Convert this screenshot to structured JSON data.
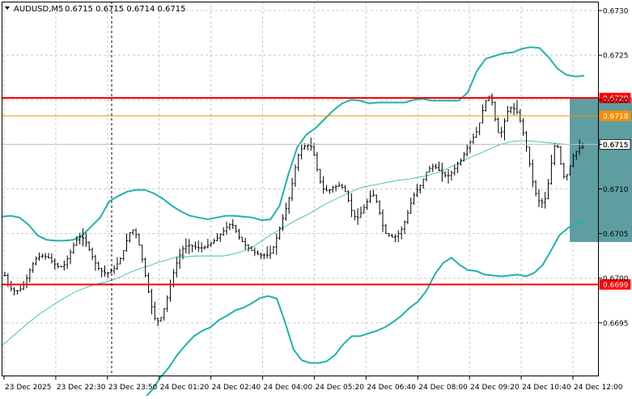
{
  "header": {
    "menu_icon": "triangle-down-icon",
    "symbol": "AUDUSD,M5",
    "ohlc": "0.6715 0.6715 0.6714 0.6715"
  },
  "colors": {
    "background": "#ffffff",
    "grid": "#c8c8c8",
    "bar": "#000000",
    "bollinger": "#20b2aa",
    "moving_average": "#20b2aa",
    "resistance_line": "#ff0000",
    "level_line": "#ff8c00",
    "bid_line": "#c0c0c0",
    "projection_box": "#5f9ea0",
    "price_label_red": "#ff0000",
    "price_label_orange": "#ff8c00",
    "price_label_bid": "#ffffff"
  },
  "chart_data": {
    "type": "candlestick-bars",
    "symbol": "AUDUSD",
    "timeframe": "M5",
    "price_range": [
      0.6689,
      0.6731
    ],
    "price_ticks": [
      "0.6730",
      "0.6725",
      "0.6720",
      "0.6715",
      "0.6710",
      "0.6705",
      "0.6700",
      "0.6695"
    ],
    "time_ticks": [
      "23 Dec 2025",
      "23 Dec 22:30",
      "23 Dec 23:50",
      "24 Dec 01:20",
      "24 Dec 02:40",
      "24 Dec 04:00",
      "24 Dec 05:20",
      "24 Dec 06:40",
      "24 Dec 08:00",
      "24 Dec 09:20",
      "24 Dec 10:40",
      "24 Dec 12:00"
    ],
    "price_labels": [
      {
        "text": "0.6720",
        "value": 0.67202,
        "style": "red"
      },
      {
        "text": "0.6718",
        "value": 0.67182,
        "style": "orange"
      },
      {
        "text": "0.6715",
        "value": 0.6715,
        "style": "bid"
      },
      {
        "text": "0.6699",
        "value": 0.66993,
        "style": "red"
      }
    ],
    "horizontal_lines": [
      {
        "value": 0.67202,
        "style": "red"
      },
      {
        "value": 0.67182,
        "style": "orange"
      },
      {
        "value": 0.6715,
        "style": "bid"
      },
      {
        "value": 0.66993,
        "style": "red"
      }
    ],
    "projection_box": {
      "time_start_index": 181,
      "time_end_index": 210,
      "price_top": 0.67202,
      "price_bottom": 0.67041
    },
    "grid": true,
    "close_series": [
      0.67003,
      0.66993,
      0.66988,
      0.66986,
      0.66986,
      0.66988,
      0.66993,
      0.67,
      0.67009,
      0.67016,
      0.67022,
      0.67024,
      0.67025,
      0.67024,
      0.67023,
      0.67019,
      0.67016,
      0.67013,
      0.67013,
      0.67015,
      0.67022,
      0.67029,
      0.67037,
      0.67043,
      0.67046,
      0.67045,
      0.6704,
      0.67032,
      0.67024,
      0.67017,
      0.67011,
      0.67008,
      0.67006,
      0.67006,
      0.67008,
      0.67011,
      0.67016,
      0.67022,
      0.67031,
      0.67042,
      0.67051,
      0.67054,
      0.67049,
      0.67037,
      0.67021,
      0.67003,
      0.66985,
      0.66968,
      0.66955,
      0.66952,
      0.66956,
      0.66966,
      0.66978,
      0.66993,
      0.67006,
      0.67017,
      0.67026,
      0.67033,
      0.67036,
      0.67037,
      0.67036,
      0.67035,
      0.67034,
      0.67034,
      0.67035,
      0.67037,
      0.67039,
      0.67042,
      0.67045,
      0.67049,
      0.67053,
      0.67057,
      0.6706,
      0.67059,
      0.67053,
      0.67046,
      0.67041,
      0.67037,
      0.67034,
      0.67031,
      0.67029,
      0.67027,
      0.67026,
      0.67026,
      0.67026,
      0.67028,
      0.67035,
      0.67045,
      0.67056,
      0.67067,
      0.67078,
      0.6709,
      0.67106,
      0.67124,
      0.67138,
      0.67145,
      0.67148,
      0.67149,
      0.67147,
      0.67138,
      0.67122,
      0.67108,
      0.671,
      0.67098,
      0.67099,
      0.67102,
      0.67103,
      0.67104,
      0.67102,
      0.67097,
      0.67087,
      0.67076,
      0.67069,
      0.67068,
      0.67073,
      0.67079,
      0.67086,
      0.67092,
      0.67093,
      0.67086,
      0.67073,
      0.67059,
      0.6705,
      0.67048,
      0.67046,
      0.67047,
      0.6705,
      0.67055,
      0.67063,
      0.67073,
      0.67084,
      0.67093,
      0.67099,
      0.67104,
      0.67111,
      0.67119,
      0.67123,
      0.67125,
      0.67124,
      0.67121,
      0.67118,
      0.67115,
      0.67115,
      0.67118,
      0.67123,
      0.67128,
      0.67132,
      0.67139,
      0.67146,
      0.67153,
      0.67158,
      0.67164,
      0.67174,
      0.67188,
      0.67199,
      0.67204,
      0.67197,
      0.67178,
      0.67163,
      0.67164,
      0.67176,
      0.67187,
      0.67191,
      0.6719,
      0.67186,
      0.67176,
      0.67163,
      0.67147,
      0.67128,
      0.67108,
      0.67095,
      0.67087,
      0.67085,
      0.67089,
      0.67106,
      0.67129,
      0.67148,
      0.67147,
      0.67128,
      0.67114,
      0.67116,
      0.67126,
      0.67137,
      0.67142,
      0.67146,
      0.67147
    ],
    "moving_average": [
      0.66924,
      0.66933,
      0.66942,
      0.66951,
      0.66959,
      0.66966,
      0.66973,
      0.66979,
      0.66985,
      0.66989,
      0.66993,
      0.66995,
      0.66998,
      0.67002,
      0.67007,
      0.67011,
      0.67014,
      0.67018,
      0.67021,
      0.67024,
      0.67024,
      0.67025,
      0.67025,
      0.67025,
      0.67025,
      0.67027,
      0.6703,
      0.67034,
      0.67041,
      0.67048,
      0.67054,
      0.6706,
      0.67066,
      0.67071,
      0.67077,
      0.67083,
      0.67088,
      0.67093,
      0.67098,
      0.67102,
      0.67104,
      0.67106,
      0.67108,
      0.6711,
      0.67111,
      0.67113,
      0.67115,
      0.67118,
      0.67122,
      0.67127,
      0.67132,
      0.67137,
      0.67141,
      0.67146,
      0.6715,
      0.67153,
      0.67154,
      0.67154,
      0.67153,
      0.67152,
      0.67151,
      0.6715,
      0.6715,
      0.67151
    ],
    "bollinger_upper": [
      0.67069,
      0.6707,
      0.67068,
      0.6706,
      0.67048,
      0.67043,
      0.67042,
      0.67042,
      0.67043,
      0.67048,
      0.67058,
      0.67068,
      0.67086,
      0.67092,
      0.67097,
      0.67099,
      0.67099,
      0.67095,
      0.67089,
      0.67081,
      0.67075,
      0.6707,
      0.67068,
      0.67066,
      0.67068,
      0.6707,
      0.6707,
      0.67069,
      0.67068,
      0.67065,
      0.67066,
      0.67081,
      0.67117,
      0.67147,
      0.67161,
      0.67168,
      0.67178,
      0.67188,
      0.67196,
      0.672,
      0.67199,
      0.67196,
      0.67197,
      0.67197,
      0.67197,
      0.67197,
      0.672,
      0.67201,
      0.67199,
      0.67199,
      0.67199,
      0.67199,
      0.67208,
      0.67232,
      0.67246,
      0.67249,
      0.67252,
      0.67253,
      0.67257,
      0.67259,
      0.67258,
      0.67248,
      0.67235,
      0.67228,
      0.67226,
      0.67227
    ],
    "bollinger_lower": [
      0.66865,
      0.66875,
      0.66889,
      0.669,
      0.66914,
      0.66925,
      0.66935,
      0.66941,
      0.66945,
      0.66953,
      0.66958,
      0.66964,
      0.66967,
      0.66972,
      0.66978,
      0.6698,
      0.66977,
      0.6695,
      0.6692,
      0.66908,
      0.66905,
      0.66905,
      0.66907,
      0.66914,
      0.66926,
      0.66935,
      0.66935,
      0.66938,
      0.66941,
      0.66945,
      0.66951,
      0.66958,
      0.66967,
      0.66974,
      0.66986,
      0.67004,
      0.67017,
      0.67023,
      0.67015,
      0.67009,
      0.67008,
      0.67004,
      0.67003,
      0.67002,
      0.67003,
      0.67004,
      0.67002,
      0.67006,
      0.67015,
      0.67031,
      0.67048,
      0.67056,
      0.67062,
      0.67064
    ]
  }
}
